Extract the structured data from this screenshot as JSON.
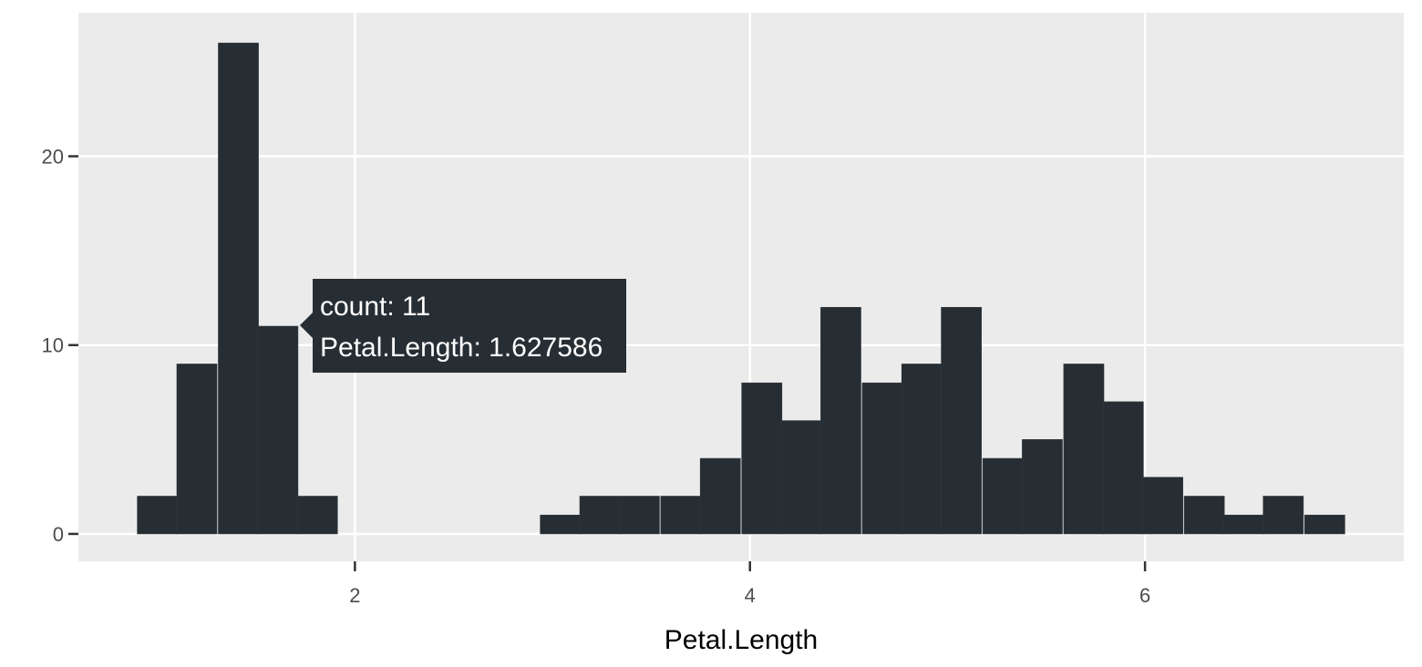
{
  "chart_data": {
    "type": "bar",
    "title": "",
    "xlabel": "Petal.Length",
    "ylabel": "",
    "xlim": [
      0.6,
      7.31
    ],
    "ylim": [
      -1.45,
      27.6
    ],
    "x_ticks": [
      2,
      4,
      6
    ],
    "x_tick_labels": [
      "2",
      "4",
      "6"
    ],
    "y_ticks": [
      0,
      10,
      20
    ],
    "y_tick_labels": [
      "0",
      "10",
      "20"
    ],
    "grid": true,
    "bin_width": 0.2034483,
    "bins": [
      {
        "x": 1.0,
        "count": 2
      },
      {
        "x": 1.2,
        "count": 9
      },
      {
        "x": 1.41,
        "count": 26
      },
      {
        "x": 1.61,
        "count": 11
      },
      {
        "x": 1.81,
        "count": 2
      },
      {
        "x": 2.02,
        "count": 0
      },
      {
        "x": 2.22,
        "count": 0
      },
      {
        "x": 2.43,
        "count": 0
      },
      {
        "x": 2.63,
        "count": 0
      },
      {
        "x": 2.83,
        "count": 0
      },
      {
        "x": 3.04,
        "count": 1
      },
      {
        "x": 3.24,
        "count": 2
      },
      {
        "x": 3.44,
        "count": 2
      },
      {
        "x": 3.65,
        "count": 2
      },
      {
        "x": 3.85,
        "count": 4
      },
      {
        "x": 4.06,
        "count": 8
      },
      {
        "x": 4.26,
        "count": 6
      },
      {
        "x": 4.46,
        "count": 12
      },
      {
        "x": 4.67,
        "count": 8
      },
      {
        "x": 4.87,
        "count": 9
      },
      {
        "x": 5.07,
        "count": 12
      },
      {
        "x": 5.28,
        "count": 4
      },
      {
        "x": 5.48,
        "count": 5
      },
      {
        "x": 5.69,
        "count": 9
      },
      {
        "x": 5.89,
        "count": 7
      },
      {
        "x": 6.09,
        "count": 3
      },
      {
        "x": 6.3,
        "count": 2
      },
      {
        "x": 6.5,
        "count": 1
      },
      {
        "x": 6.7,
        "count": 2
      },
      {
        "x": 6.91,
        "count": 1
      }
    ],
    "colors": {
      "panel_background": "#ebebeb",
      "grid": "#ffffff",
      "bar_fill": "#272e33",
      "tooltip_background": "#272e33",
      "tooltip_text": "#ffffff"
    }
  },
  "tooltip": {
    "line1": "count: 11",
    "line2": "Petal.Length: 1.627586"
  }
}
